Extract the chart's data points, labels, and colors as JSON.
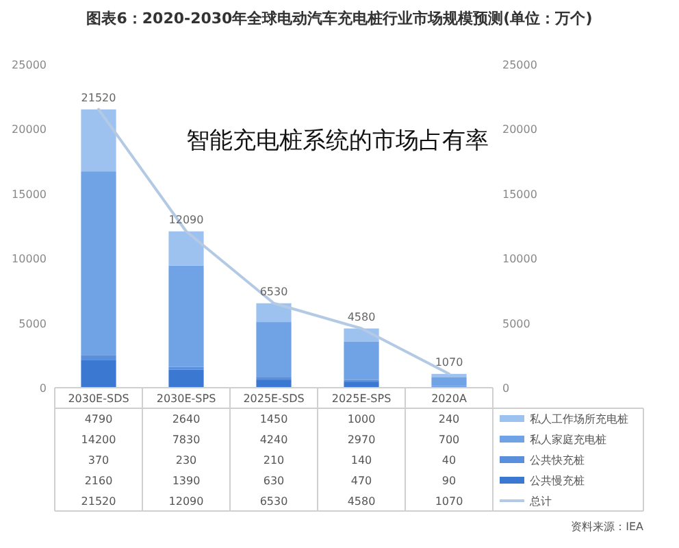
{
  "chart_data": {
    "type": "bar",
    "title": "图表6：2020-2030年全球电动汽车充电桩行业市场规模预测(单位：万个)",
    "annotations": [
      "智能充电桩系统的市场占有率",
      "资料来源：IEA"
    ],
    "categories": [
      "2030E-SDS",
      "2030E-SPS",
      "2025E-SDS",
      "2025E-SPS",
      "2020A"
    ],
    "stacked": true,
    "series": [
      {
        "name": "公共慢充桩",
        "color": "#3b78d2",
        "values": [
          2160,
          1390,
          630,
          470,
          90
        ]
      },
      {
        "name": "公共快充桩",
        "color": "#5a8fdc",
        "values": [
          370,
          230,
          210,
          140,
          40
        ]
      },
      {
        "name": "私人家庭充电桩",
        "color": "#6fa3e6",
        "values": [
          14200,
          7830,
          4240,
          2970,
          700
        ]
      },
      {
        "name": "私人工作场所充电桩",
        "color": "#9dc2ef",
        "values": [
          4790,
          2640,
          1450,
          1000,
          240
        ]
      },
      {
        "name": "总计",
        "type": "line",
        "color": "#b4c9e4",
        "values": [
          21520,
          12090,
          6530,
          4580,
          1070
        ]
      }
    ],
    "totals": [
      "21520",
      "12090",
      "6530",
      "4580",
      "1070"
    ],
    "ylim": [
      0,
      25000
    ],
    "yticks": [
      0,
      5000,
      10000,
      15000,
      20000,
      25000
    ],
    "y2lim": [
      0,
      25000
    ],
    "y2ticks": [
      0,
      5000,
      10000,
      15000,
      20000,
      25000
    ],
    "data_labels": true,
    "legend": "bottom"
  }
}
